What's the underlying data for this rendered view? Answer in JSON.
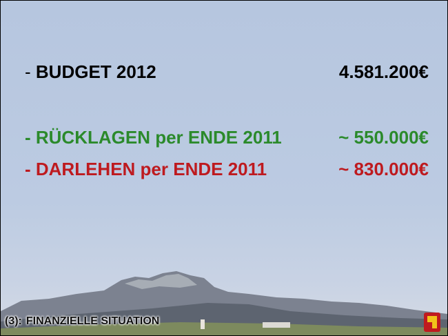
{
  "slide": {
    "rows": [
      {
        "dash": "-",
        "label": "BUDGET 2012",
        "value": "4.581.200€"
      },
      {
        "label": "- RÜCKLAGEN per ENDE 2011",
        "value": "~ 550.000€"
      },
      {
        "label": "- DARLEHEN per ENDE 2011",
        "value": "~ 830.000€"
      }
    ],
    "footer": {
      "number": "(3):",
      "title": "FINANZIELLE SITUATION"
    }
  }
}
